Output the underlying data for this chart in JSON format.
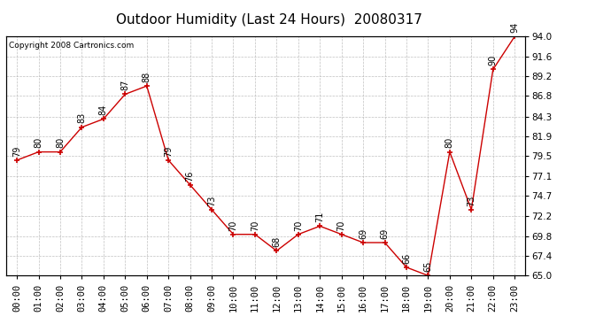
{
  "title": "Outdoor Humidity (Last 24 Hours)  20080317",
  "copyright": "Copyright 2008 Cartronics.com",
  "hours": [
    "00:00",
    "01:00",
    "02:00",
    "03:00",
    "04:00",
    "05:00",
    "06:00",
    "07:00",
    "08:00",
    "09:00",
    "10:00",
    "11:00",
    "12:00",
    "13:00",
    "14:00",
    "15:00",
    "16:00",
    "17:00",
    "18:00",
    "19:00",
    "20:00",
    "21:00",
    "22:00",
    "23:00"
  ],
  "values": [
    79,
    80,
    80,
    83,
    84,
    87,
    88,
    79,
    76,
    73,
    70,
    70,
    68,
    70,
    71,
    70,
    69,
    69,
    66,
    65,
    80,
    73,
    90,
    94
  ],
  "ylim": [
    65.0,
    94.0
  ],
  "yticks": [
    65.0,
    67.4,
    69.8,
    72.2,
    74.7,
    77.1,
    79.5,
    81.9,
    84.3,
    86.8,
    89.2,
    91.6,
    94.0
  ],
  "line_color": "#cc0000",
  "marker_color": "#cc0000",
  "bg_color": "#ffffff",
  "grid_color": "#b0b0b0",
  "title_fontsize": 11,
  "label_fontsize": 7.5,
  "annotation_fontsize": 7,
  "copyright_fontsize": 6.5
}
